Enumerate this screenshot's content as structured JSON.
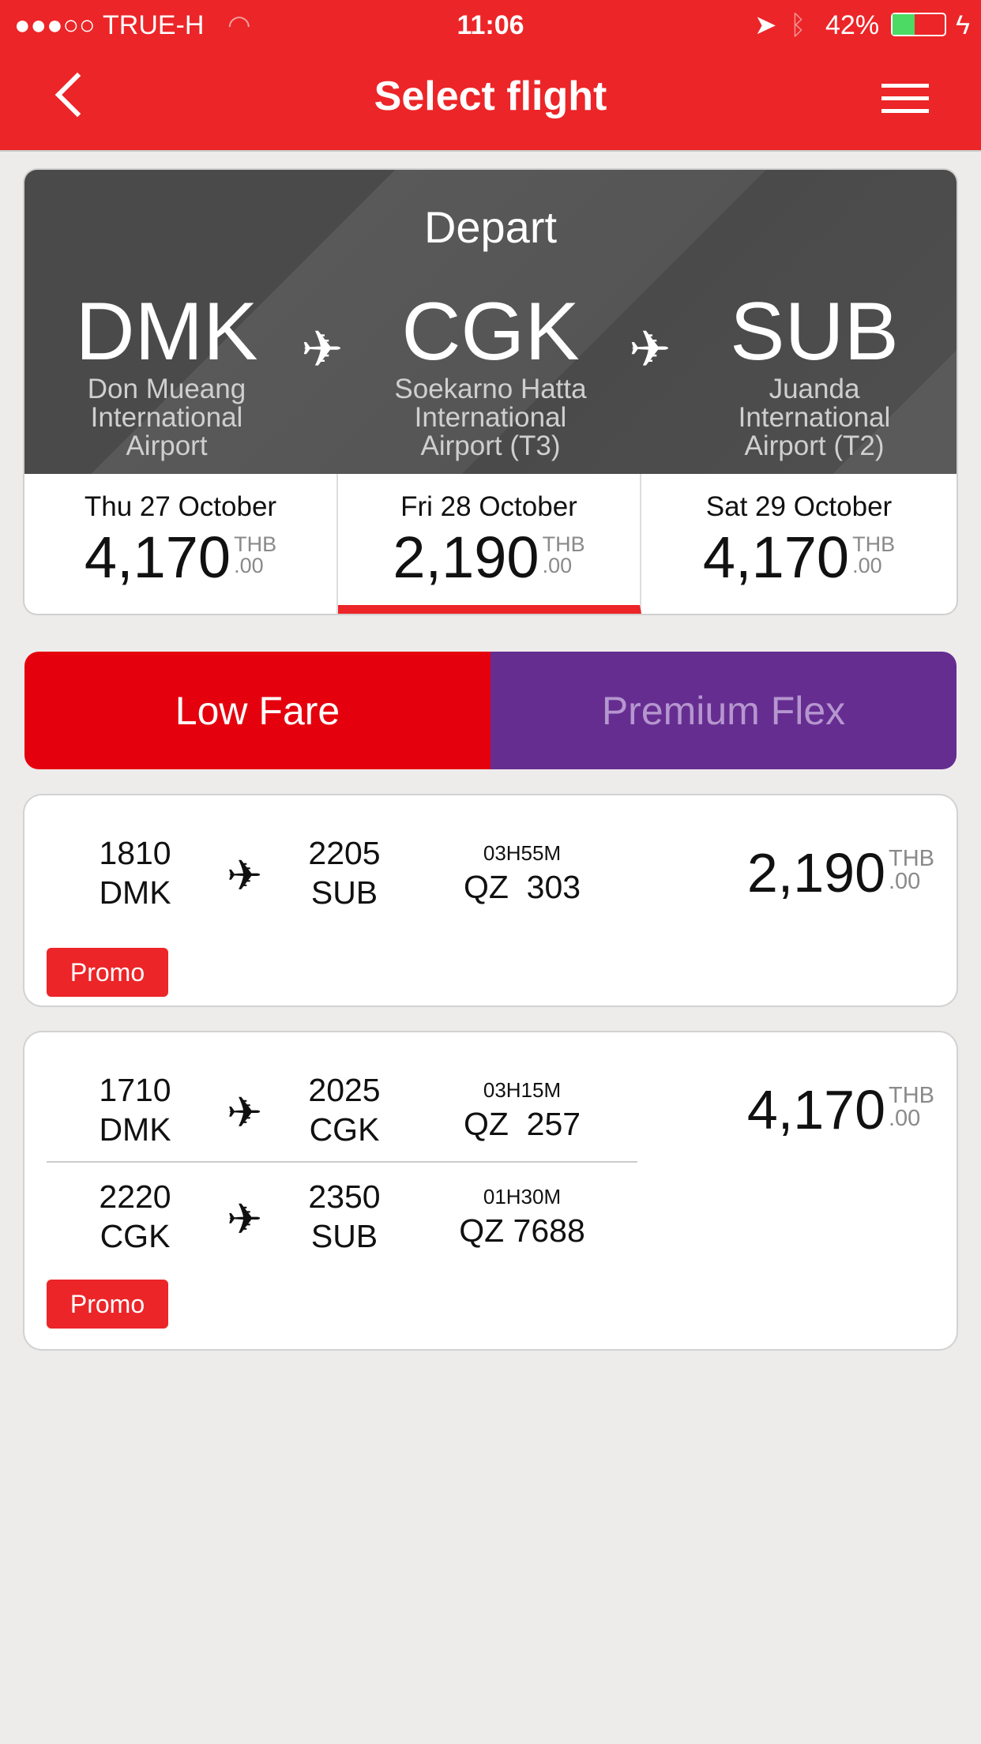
{
  "status_bar": {
    "carrier": "TRUE-H",
    "time": "11:06",
    "battery": "42%",
    "battery_level": 42,
    "signal_bars": 3
  },
  "header": {
    "title": "Select flight"
  },
  "route": {
    "label": "Depart",
    "airports": [
      {
        "code": "DMK",
        "name": "Don Mueang International Airport"
      },
      {
        "code": "CGK",
        "name": "Soekarno Hatta International Airport (T3)"
      },
      {
        "code": "SUB",
        "name": "Juanda International Airport (T2)"
      }
    ]
  },
  "dates": [
    {
      "label": "Thu 27 October",
      "price": "4,170",
      "currency": "THB",
      "cents": ".00",
      "selected": false
    },
    {
      "label": "Fri 28 October",
      "price": "2,190",
      "currency": "THB",
      "cents": ".00",
      "selected": true
    },
    {
      "label": "Sat 29 October",
      "price": "4,170",
      "currency": "THB",
      "cents": ".00",
      "selected": false
    }
  ],
  "fare_tabs": [
    {
      "label": "Low Fare",
      "color": "#e5000d",
      "active": true
    },
    {
      "label": "Premium Flex",
      "color": "#662d91",
      "active": false
    }
  ],
  "flights": [
    {
      "price": "2,190",
      "currency": "THB",
      "cents": ".00",
      "badge": "Promo",
      "segments": [
        {
          "dep_time": "1810",
          "dep": "DMK",
          "arr_time": "2205",
          "arr": "SUB",
          "duration": "03H55M",
          "flight": "QZ  303"
        }
      ]
    },
    {
      "price": "4,170",
      "currency": "THB",
      "cents": ".00",
      "badge": "Promo",
      "segments": [
        {
          "dep_time": "1710",
          "dep": "DMK",
          "arr_time": "2025",
          "arr": "CGK",
          "duration": "03H15M",
          "flight": "QZ  257"
        },
        {
          "dep_time": "2220",
          "dep": "CGK",
          "arr_time": "2350",
          "arr": "SUB",
          "duration": "01H30M",
          "flight": "QZ 7688"
        }
      ]
    }
  ]
}
